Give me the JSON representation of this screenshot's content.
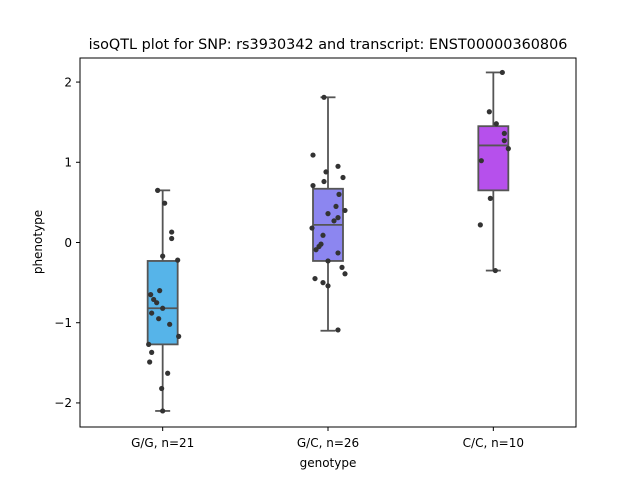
{
  "chart_data": {
    "type": "box",
    "title": "isoQTL plot for SNP: rs3930342 and transcript: ENST00000360806",
    "xlabel": "genotype",
    "ylabel": "phenotype",
    "ylim": [
      -2.3,
      2.3
    ],
    "yticks": [
      {
        "value": -2,
        "label": "−2"
      },
      {
        "value": -1,
        "label": "−1"
      },
      {
        "value": 0,
        "label": "0"
      },
      {
        "value": 1,
        "label": "1"
      },
      {
        "value": 2,
        "label": "2"
      }
    ],
    "categories": [
      "G/G, n=21",
      "G/C, n=26",
      "C/C, n=10"
    ],
    "colors": {
      "box_edge": "#555555",
      "points": "#333333",
      "boxes": [
        "#56B4E9",
        "#8C86F0",
        "#B650EC"
      ]
    },
    "series": [
      {
        "category": "G/G, n=21",
        "min": -2.1,
        "q1": -1.27,
        "median": -0.82,
        "q3": -0.23,
        "max": 0.65,
        "points": [
          {
            "x": -0.05,
            "y": 0.65
          },
          {
            "x": 0.02,
            "y": 0.49
          },
          {
            "x": 0.09,
            "y": 0.13
          },
          {
            "x": 0.09,
            "y": 0.05
          },
          {
            "x": 0.0,
            "y": -0.17
          },
          {
            "x": 0.15,
            "y": -0.22
          },
          {
            "x": -0.03,
            "y": -0.6
          },
          {
            "x": -0.12,
            "y": -0.65
          },
          {
            "x": -0.09,
            "y": -0.71
          },
          {
            "x": -0.06,
            "y": -0.75
          },
          {
            "x": 0.0,
            "y": -0.82
          },
          {
            "x": -0.11,
            "y": -0.88
          },
          {
            "x": -0.04,
            "y": -0.95
          },
          {
            "x": 0.07,
            "y": -1.02
          },
          {
            "x": 0.16,
            "y": -1.17
          },
          {
            "x": -0.14,
            "y": -1.27
          },
          {
            "x": -0.11,
            "y": -1.37
          },
          {
            "x": -0.13,
            "y": -1.49
          },
          {
            "x": 0.05,
            "y": -1.63
          },
          {
            "x": -0.01,
            "y": -1.82
          },
          {
            "x": 0.0,
            "y": -2.1
          }
        ]
      },
      {
        "category": "G/C, n=26",
        "min": -1.1,
        "q1": -0.23,
        "median": 0.22,
        "q3": 0.67,
        "max": 1.81,
        "points": [
          {
            "x": -0.04,
            "y": 1.81
          },
          {
            "x": -0.15,
            "y": 1.09
          },
          {
            "x": 0.1,
            "y": 0.95
          },
          {
            "x": -0.02,
            "y": 0.88
          },
          {
            "x": 0.15,
            "y": 0.81
          },
          {
            "x": -0.04,
            "y": 0.76
          },
          {
            "x": -0.15,
            "y": 0.71
          },
          {
            "x": 0.11,
            "y": 0.6
          },
          {
            "x": 0.08,
            "y": 0.45
          },
          {
            "x": 0.17,
            "y": 0.4
          },
          {
            "x": 0.0,
            "y": 0.36
          },
          {
            "x": 0.1,
            "y": 0.31
          },
          {
            "x": 0.06,
            "y": 0.27
          },
          {
            "x": -0.16,
            "y": 0.18
          },
          {
            "x": -0.05,
            "y": 0.09
          },
          {
            "x": -0.07,
            "y": -0.02
          },
          {
            "x": -0.09,
            "y": -0.05
          },
          {
            "x": -0.12,
            "y": -0.09
          },
          {
            "x": 0.1,
            "y": -0.13
          },
          {
            "x": 0.0,
            "y": -0.23
          },
          {
            "x": 0.14,
            "y": -0.31
          },
          {
            "x": 0.17,
            "y": -0.39
          },
          {
            "x": -0.13,
            "y": -0.45
          },
          {
            "x": -0.05,
            "y": -0.5
          },
          {
            "x": 0.0,
            "y": -0.54
          },
          {
            "x": 0.1,
            "y": -1.09
          }
        ]
      },
      {
        "category": "C/C, n=10",
        "min": -0.35,
        "q1": 0.65,
        "median": 1.21,
        "q3": 1.45,
        "max": 2.12,
        "points": [
          {
            "x": 0.09,
            "y": 2.12
          },
          {
            "x": -0.04,
            "y": 1.63
          },
          {
            "x": 0.03,
            "y": 1.48
          },
          {
            "x": 0.11,
            "y": 1.36
          },
          {
            "x": 0.11,
            "y": 1.27
          },
          {
            "x": 0.15,
            "y": 1.17
          },
          {
            "x": -0.12,
            "y": 1.02
          },
          {
            "x": -0.03,
            "y": 0.55
          },
          {
            "x": -0.13,
            "y": 0.22
          },
          {
            "x": 0.02,
            "y": -0.35
          }
        ]
      }
    ]
  }
}
